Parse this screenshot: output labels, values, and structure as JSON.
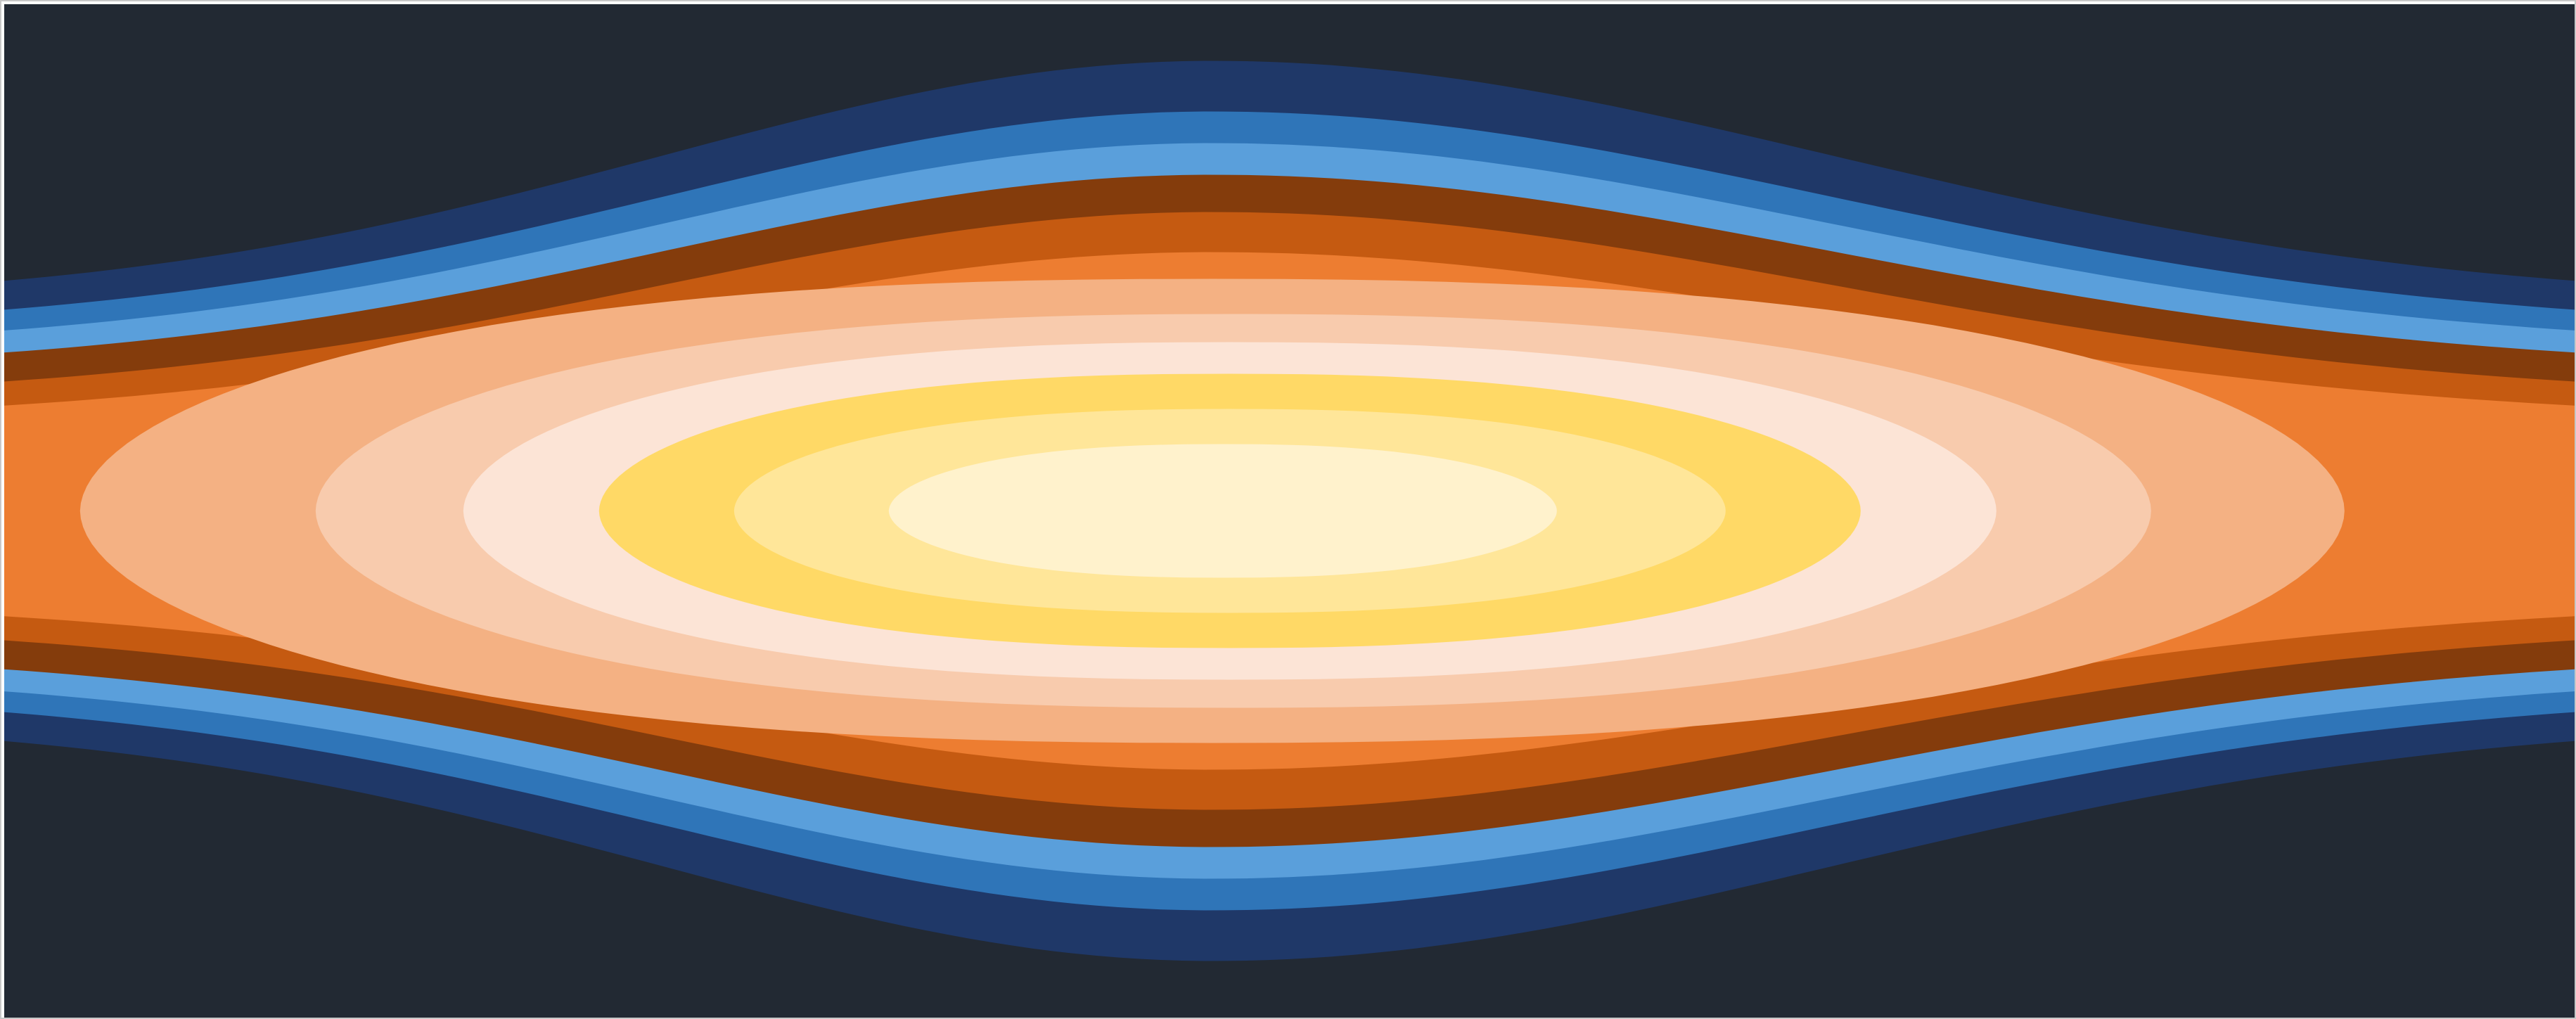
{
  "chart_data": {
    "type": "heatmap",
    "title": "",
    "xlabel": "",
    "ylabel": "",
    "grid": false,
    "legend": "none",
    "background_color": "#222933",
    "field": {
      "description_kind": "filled-contour",
      "center_x_fraction": 0.47,
      "center_y_fraction": 0.5
    },
    "levels": [
      {
        "level": 1,
        "color": "#1f3868"
      },
      {
        "level": 2,
        "color": "#2f75b8"
      },
      {
        "level": 3,
        "color": "#5a9fdb"
      },
      {
        "level": 4,
        "color": "#843c0c"
      },
      {
        "level": 5,
        "color": "#c55a11"
      },
      {
        "level": 6,
        "color": "#ed7d31"
      },
      {
        "level": 7,
        "color": "#f4b183"
      },
      {
        "level": 8,
        "color": "#f8cbad"
      },
      {
        "level": 9,
        "color": "#fce4d6"
      },
      {
        "level": 10,
        "color": "#ffd966"
      },
      {
        "level": 11,
        "color": "#ffe699"
      },
      {
        "level": 12,
        "color": "#fff2cc"
      }
    ]
  }
}
